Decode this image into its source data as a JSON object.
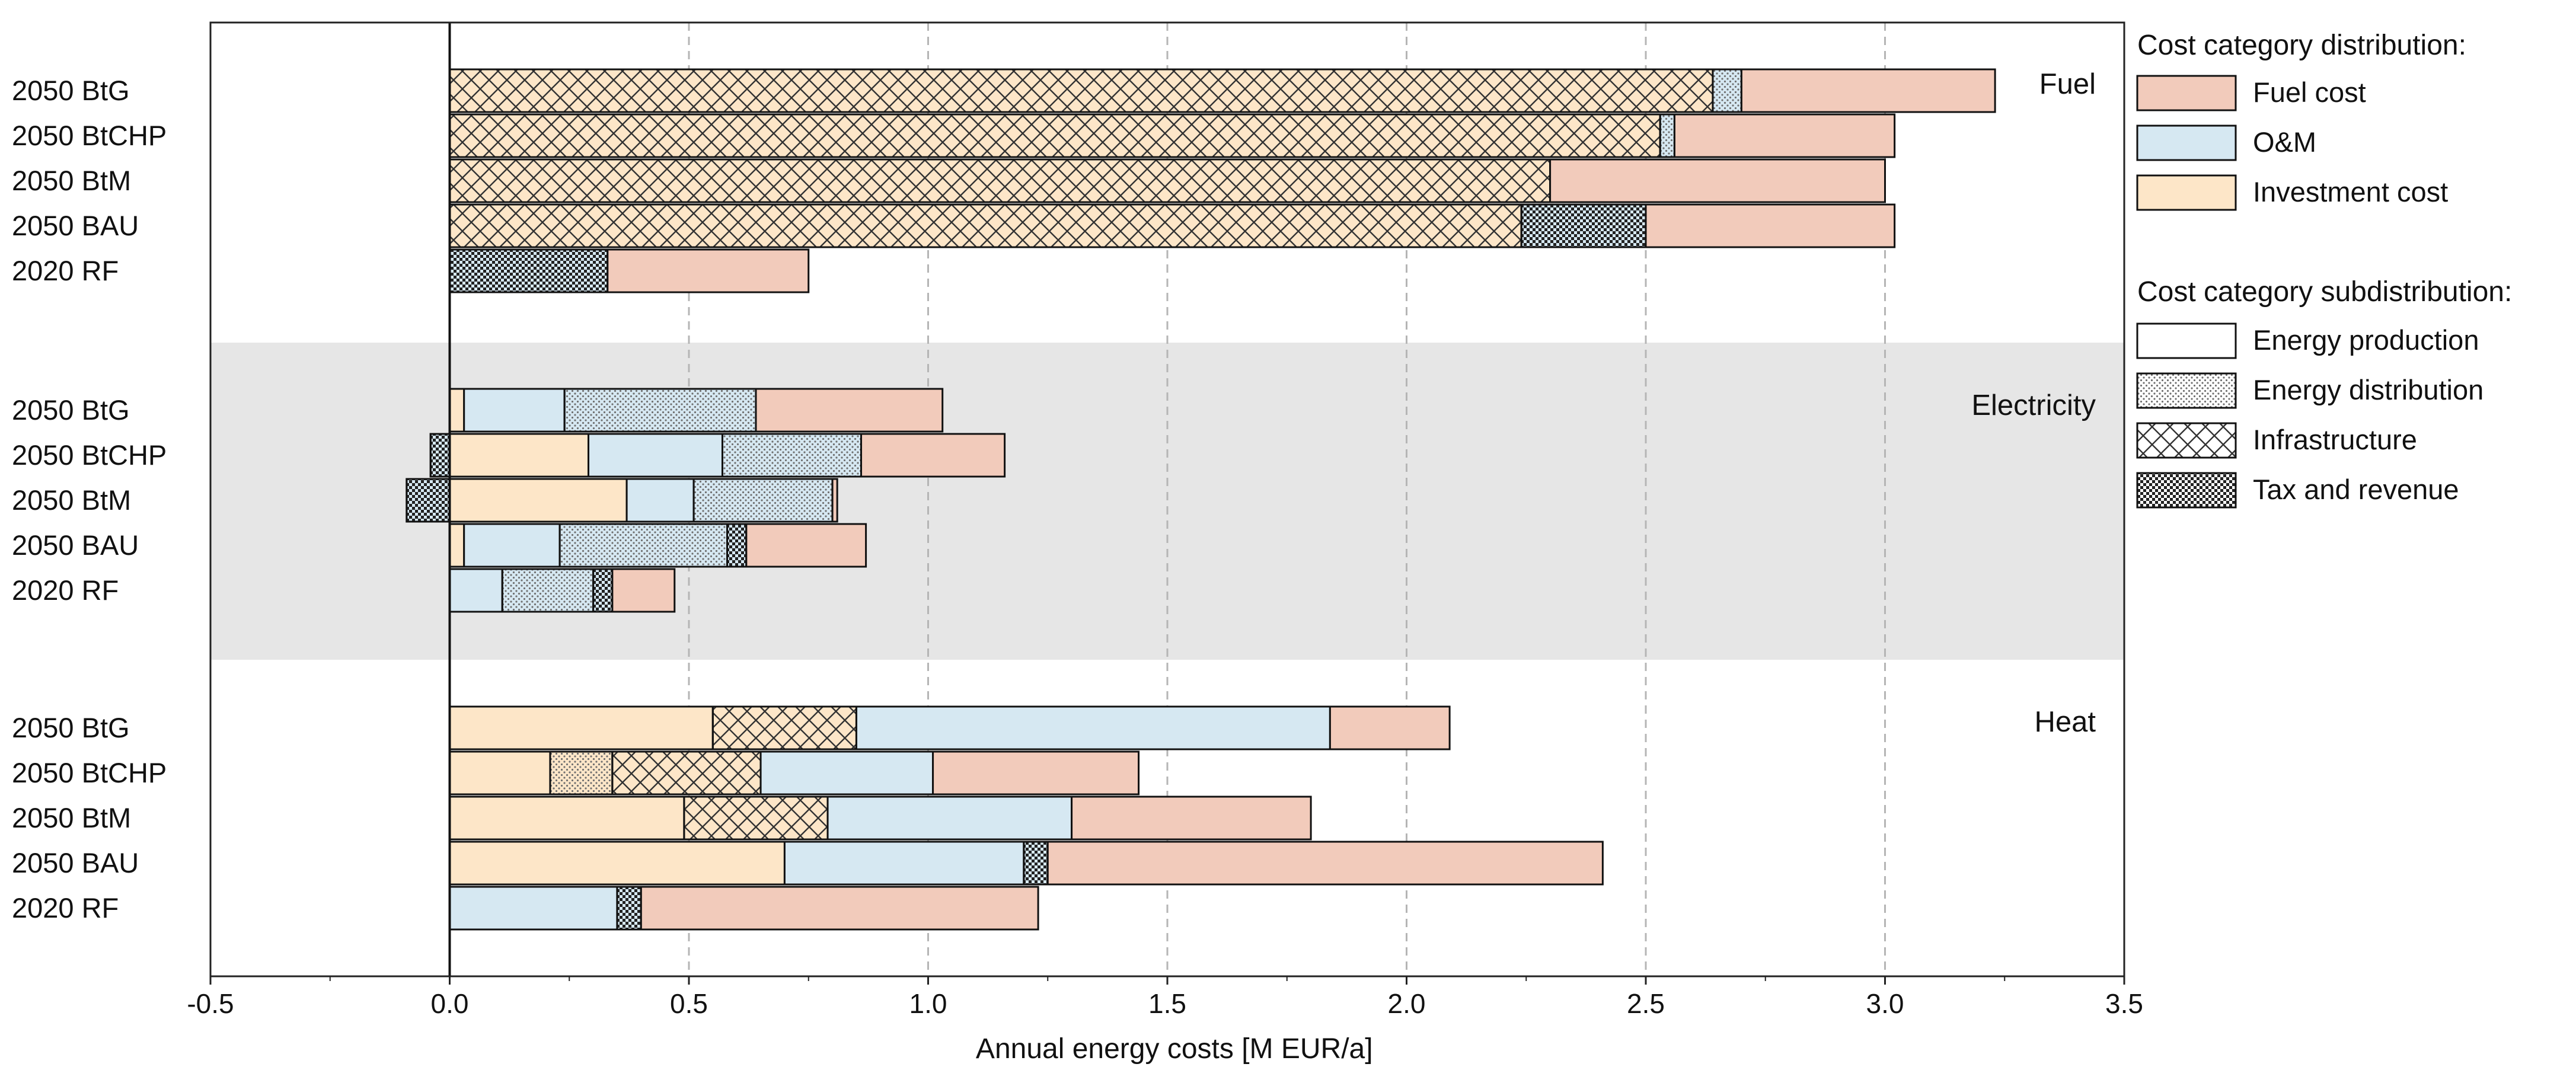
{
  "chart_data": {
    "type": "bar",
    "orientation": "horizontal",
    "stacked": true,
    "title": "",
    "xlabel": "Annual energy costs [M EUR/a]",
    "ylabel": "",
    "xlim": [
      -0.5,
      3.5
    ],
    "x_ticks": [
      -0.5,
      0.0,
      0.5,
      1.0,
      1.5,
      2.0,
      2.5,
      3.0,
      3.5
    ],
    "x_tick_labels": [
      "-0.5",
      "0.0",
      "0.5",
      "1.0",
      "1.5",
      "2.0",
      "2.5",
      "3.0",
      "3.5"
    ],
    "grid": "vertical dashed",
    "legend_position": "right",
    "legend": {
      "category_title": "Cost category distribution:",
      "categories": [
        {
          "key": "fuel",
          "label": "Fuel cost",
          "color": "#f2cbbb"
        },
        {
          "key": "om",
          "label": "O&M",
          "color": "#d6e8f2"
        },
        {
          "key": "inv",
          "label": "Investment cost",
          "color": "#fde6c8"
        }
      ],
      "subcategory_title": "Cost category subdistribution:",
      "subcategories": [
        {
          "key": "prod",
          "label": "Energy production",
          "pattern": "none"
        },
        {
          "key": "dist",
          "label": "Energy distribution",
          "pattern": "dots"
        },
        {
          "key": "infra",
          "label": "Infrastructure",
          "pattern": "crosshatch"
        },
        {
          "key": "tax",
          "label": "Tax and revenue",
          "pattern": "checker"
        }
      ]
    },
    "groups": [
      {
        "name": "Fuel",
        "shaded": false,
        "bars": [
          {
            "label": "2050 BtG",
            "segments": [
              {
                "cat": "inv",
                "sub": "infra",
                "value": 2.64
              },
              {
                "cat": "om",
                "sub": "dist",
                "value": 0.06
              },
              {
                "cat": "fuel",
                "sub": "prod",
                "value": 0.53
              }
            ]
          },
          {
            "label": "2050 BtCHP",
            "segments": [
              {
                "cat": "inv",
                "sub": "infra",
                "value": 2.53
              },
              {
                "cat": "om",
                "sub": "dist",
                "value": 0.03
              },
              {
                "cat": "fuel",
                "sub": "prod",
                "value": 0.46
              }
            ]
          },
          {
            "label": "2050 BtM",
            "segments": [
              {
                "cat": "inv",
                "sub": "infra",
                "value": 2.3
              },
              {
                "cat": "fuel",
                "sub": "prod",
                "value": 0.7
              }
            ]
          },
          {
            "label": "2050 BAU",
            "segments": [
              {
                "cat": "inv",
                "sub": "infra",
                "value": 2.24
              },
              {
                "cat": "om",
                "sub": "tax",
                "value": 0.26
              },
              {
                "cat": "fuel",
                "sub": "prod",
                "value": 0.52
              }
            ]
          },
          {
            "label": "2020 RF",
            "segments": [
              {
                "cat": "om",
                "sub": "tax",
                "value": 0.33
              },
              {
                "cat": "fuel",
                "sub": "prod",
                "value": 0.42
              }
            ]
          }
        ]
      },
      {
        "name": "Electricity",
        "shaded": true,
        "bars": [
          {
            "label": "2050 BtG",
            "segments": [
              {
                "cat": "inv",
                "sub": "prod",
                "value": 0.03
              },
              {
                "cat": "om",
                "sub": "prod",
                "value": 0.21
              },
              {
                "cat": "om",
                "sub": "dist",
                "value": 0.4
              },
              {
                "cat": "fuel",
                "sub": "prod",
                "value": 0.39
              }
            ]
          },
          {
            "label": "2050 BtCHP",
            "negative": [
              {
                "cat": "om",
                "sub": "tax",
                "value": -0.04
              }
            ],
            "segments": [
              {
                "cat": "inv",
                "sub": "prod",
                "value": 0.29
              },
              {
                "cat": "om",
                "sub": "prod",
                "value": 0.28
              },
              {
                "cat": "om",
                "sub": "dist",
                "value": 0.29
              },
              {
                "cat": "fuel",
                "sub": "prod",
                "value": 0.3
              }
            ]
          },
          {
            "label": "2050 BtM",
            "negative": [
              {
                "cat": "om",
                "sub": "tax",
                "value": -0.09
              }
            ],
            "segments": [
              {
                "cat": "inv",
                "sub": "prod",
                "value": 0.37
              },
              {
                "cat": "om",
                "sub": "prod",
                "value": 0.14
              },
              {
                "cat": "om",
                "sub": "dist",
                "value": 0.29
              },
              {
                "cat": "fuel",
                "sub": "prod",
                "value": 0.01
              }
            ]
          },
          {
            "label": "2050 BAU",
            "segments": [
              {
                "cat": "inv",
                "sub": "prod",
                "value": 0.03
              },
              {
                "cat": "om",
                "sub": "prod",
                "value": 0.2
              },
              {
                "cat": "om",
                "sub": "dist",
                "value": 0.35
              },
              {
                "cat": "om",
                "sub": "tax",
                "value": 0.04
              },
              {
                "cat": "fuel",
                "sub": "prod",
                "value": 0.25
              }
            ]
          },
          {
            "label": "2020 RF",
            "segments": [
              {
                "cat": "om",
                "sub": "prod",
                "value": 0.11
              },
              {
                "cat": "om",
                "sub": "dist",
                "value": 0.19
              },
              {
                "cat": "om",
                "sub": "tax",
                "value": 0.04
              },
              {
                "cat": "fuel",
                "sub": "prod",
                "value": 0.13
              }
            ]
          }
        ]
      },
      {
        "name": "Heat",
        "shaded": false,
        "bars": [
          {
            "label": "2050 BtG",
            "segments": [
              {
                "cat": "inv",
                "sub": "prod",
                "value": 0.55
              },
              {
                "cat": "inv",
                "sub": "infra",
                "value": 0.3
              },
              {
                "cat": "om",
                "sub": "prod",
                "value": 0.99
              },
              {
                "cat": "fuel",
                "sub": "prod",
                "value": 0.25
              }
            ]
          },
          {
            "label": "2050 BtCHP",
            "segments": [
              {
                "cat": "inv",
                "sub": "prod",
                "value": 0.21
              },
              {
                "cat": "inv",
                "sub": "dist",
                "value": 0.13
              },
              {
                "cat": "inv",
                "sub": "infra",
                "value": 0.31
              },
              {
                "cat": "om",
                "sub": "prod",
                "value": 0.36
              },
              {
                "cat": "fuel",
                "sub": "prod",
                "value": 0.43
              }
            ]
          },
          {
            "label": "2050 BtM",
            "segments": [
              {
                "cat": "inv",
                "sub": "prod",
                "value": 0.49
              },
              {
                "cat": "inv",
                "sub": "infra",
                "value": 0.3
              },
              {
                "cat": "om",
                "sub": "prod",
                "value": 0.51
              },
              {
                "cat": "fuel",
                "sub": "prod",
                "value": 0.5
              }
            ]
          },
          {
            "label": "2050 BAU",
            "segments": [
              {
                "cat": "inv",
                "sub": "prod",
                "value": 0.7
              },
              {
                "cat": "om",
                "sub": "prod",
                "value": 0.5
              },
              {
                "cat": "om",
                "sub": "tax",
                "value": 0.05
              },
              {
                "cat": "fuel",
                "sub": "prod",
                "value": 1.16
              }
            ]
          },
          {
            "label": "2020 RF",
            "segments": [
              {
                "cat": "om",
                "sub": "prod",
                "value": 0.35
              },
              {
                "cat": "om",
                "sub": "tax",
                "value": 0.05
              },
              {
                "cat": "fuel",
                "sub": "prod",
                "value": 0.83
              }
            ]
          }
        ]
      }
    ]
  }
}
